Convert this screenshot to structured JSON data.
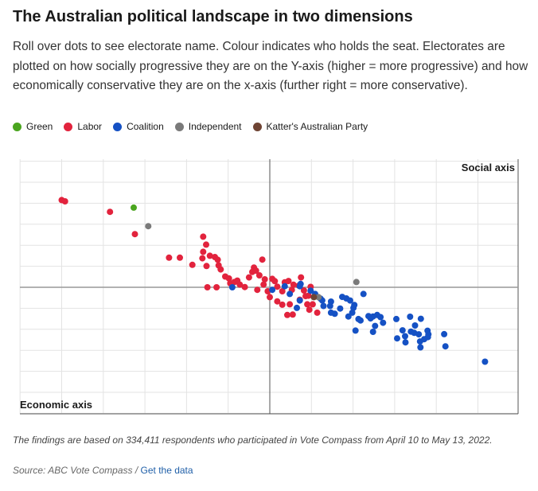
{
  "header": {
    "title": "The Australian political landscape in two dimensions",
    "subtitle": "Roll over dots to see electorate name. Colour indicates who holds the seat. Electorates are plotted on how socially progressive they are on the Y-axis (higher = more progressive) and how economically conservative they are on the x-axis (further right = more conservative)."
  },
  "legend": [
    {
      "label": "Green",
      "color": "#4aa51f"
    },
    {
      "label": "Labor",
      "color": "#e2233d"
    },
    {
      "label": "Coalition",
      "color": "#1551c4"
    },
    {
      "label": "Independent",
      "color": "#7a7a7a"
    },
    {
      "label": "Katter's Australian Party",
      "color": "#6f4434"
    }
  ],
  "chart_data": {
    "type": "scatter",
    "ylabel": "Social axis",
    "xlabel": "Economic axis",
    "grid": true,
    "quadrant_axes": true,
    "xlim": [
      -5,
      5
    ],
    "ylim": [
      -5,
      5
    ],
    "series": [
      {
        "name": "Green",
        "color": "#4aa51f",
        "points": [
          [
            -3.27,
            3.79
          ]
        ]
      },
      {
        "name": "Independent",
        "color": "#7a7a7a",
        "points": [
          [
            -2.92,
            2.91
          ],
          [
            2.08,
            0.25
          ],
          [
            1.17,
            -0.47
          ]
        ]
      },
      {
        "name": "Katter's Australian Party",
        "color": "#6f4434",
        "points": [
          [
            1.06,
            -0.47
          ]
        ]
      },
      {
        "name": "Labor",
        "color": "#e2233d",
        "points": [
          [
            -5.0,
            4.15
          ],
          [
            -4.92,
            4.09
          ],
          [
            -3.84,
            3.59
          ],
          [
            -3.24,
            2.53
          ],
          [
            -2.42,
            1.41
          ],
          [
            -2.16,
            1.41
          ],
          [
            -1.86,
            1.07
          ],
          [
            -1.6,
            1.69
          ],
          [
            -1.62,
            1.38
          ],
          [
            -1.52,
            1.01
          ],
          [
            -1.6,
            2.41
          ],
          [
            -1.53,
            2.03
          ],
          [
            -1.44,
            1.5
          ],
          [
            -1.32,
            1.44
          ],
          [
            -1.23,
            1.04
          ],
          [
            -1.18,
            0.85
          ],
          [
            -1.25,
            1.31
          ],
          [
            -1.07,
            0.51
          ],
          [
            -0.98,
            0.42
          ],
          [
            -0.95,
            0.19
          ],
          [
            -1.5,
            0.0
          ],
          [
            -1.28,
            0.0
          ],
          [
            -0.85,
            0.25
          ],
          [
            -0.72,
            0.13
          ],
          [
            -0.78,
            0.32
          ],
          [
            -0.6,
            0.01
          ],
          [
            -0.5,
            0.47
          ],
          [
            -0.42,
            0.73
          ],
          [
            -0.38,
            0.94
          ],
          [
            -0.33,
            0.79
          ],
          [
            -0.25,
            0.57
          ],
          [
            -0.12,
            0.38
          ],
          [
            -0.15,
            0.13
          ],
          [
            0.12,
            0.29
          ],
          [
            0.06,
            0.4
          ],
          [
            0.18,
            0.03
          ],
          [
            0.3,
            -0.19
          ],
          [
            0.36,
            0.24
          ],
          [
            0.45,
            0.3
          ],
          [
            0.53,
            -0.12
          ],
          [
            0.57,
            0.12
          ],
          [
            0.7,
            0.08
          ],
          [
            0.72,
            -0.59
          ],
          [
            0.82,
            -0.15
          ],
          [
            0.86,
            -0.42
          ],
          [
            0.75,
            0.47
          ],
          [
            0.93,
            -0.4
          ],
          [
            0.98,
            0.02
          ],
          [
            -0.18,
            1.32
          ],
          [
            0.0,
            -0.47
          ],
          [
            0.18,
            -0.67
          ],
          [
            0.3,
            -0.83
          ],
          [
            0.42,
            -1.32
          ],
          [
            0.48,
            -0.81
          ],
          [
            0.55,
            -1.3
          ],
          [
            0.9,
            -0.81
          ],
          [
            0.95,
            -1.07
          ],
          [
            1.03,
            -0.81
          ],
          [
            1.14,
            -1.21
          ],
          [
            -0.3,
            -0.12
          ],
          [
            -0.05,
            -0.19
          ]
        ]
      },
      {
        "name": "Coalition",
        "color": "#1551c4",
        "points": [
          [
            -0.9,
            0.0
          ],
          [
            0.06,
            -0.12
          ],
          [
            0.36,
            0.05
          ],
          [
            0.48,
            -0.32
          ],
          [
            0.72,
            0.05
          ],
          [
            0.74,
            0.16
          ],
          [
            0.98,
            -0.16
          ],
          [
            1.09,
            -0.32
          ],
          [
            1.26,
            -0.63
          ],
          [
            1.29,
            -0.89
          ],
          [
            1.47,
            -0.68
          ],
          [
            1.45,
            -0.89
          ],
          [
            1.69,
            -1.01
          ],
          [
            1.56,
            -1.26
          ],
          [
            1.74,
            -0.46
          ],
          [
            1.84,
            -0.53
          ],
          [
            1.93,
            -0.63
          ],
          [
            2.03,
            -0.84
          ],
          [
            1.98,
            -1.21
          ],
          [
            2.13,
            -1.51
          ],
          [
            1.89,
            -1.39
          ],
          [
            2.25,
            -0.32
          ],
          [
            2.37,
            -1.37
          ],
          [
            2.42,
            -1.48
          ],
          [
            2.53,
            -1.84
          ],
          [
            2.48,
            -2.12
          ],
          [
            2.58,
            -1.32
          ],
          [
            2.48,
            -1.39
          ],
          [
            2.66,
            -1.42
          ],
          [
            2.72,
            -1.69
          ],
          [
            3.04,
            -1.51
          ],
          [
            3.19,
            -2.05
          ],
          [
            3.06,
            -2.43
          ],
          [
            3.26,
            -2.62
          ],
          [
            3.37,
            -1.4
          ],
          [
            3.39,
            -2.11
          ],
          [
            3.47,
            -2.17
          ],
          [
            3.58,
            -2.24
          ],
          [
            3.61,
            -2.58
          ],
          [
            3.62,
            -2.86
          ],
          [
            3.71,
            -2.47
          ],
          [
            3.79,
            -2.07
          ],
          [
            3.81,
            -2.24
          ],
          [
            3.8,
            -2.37
          ],
          [
            4.19,
            -2.23
          ],
          [
            4.22,
            -2.81
          ],
          [
            5.17,
            -3.54
          ],
          [
            2.01,
            -0.98
          ],
          [
            2.06,
            -2.06
          ],
          [
            3.49,
            -1.82
          ],
          [
            3.63,
            -1.5
          ],
          [
            0.72,
            -0.63
          ],
          [
            0.65,
            -0.98
          ],
          [
            1.22,
            -0.54
          ],
          [
            1.47,
            -1.21
          ],
          [
            2.18,
            -1.58
          ],
          [
            3.25,
            -2.33
          ]
        ]
      }
    ]
  },
  "footnote": "The findings are based on 334,411  respondents who participated in Vote Compass from April 10 to May 13, 2022.",
  "source": {
    "prefix": "Source: ABC Vote Compass / ",
    "link_label": "Get the data"
  }
}
